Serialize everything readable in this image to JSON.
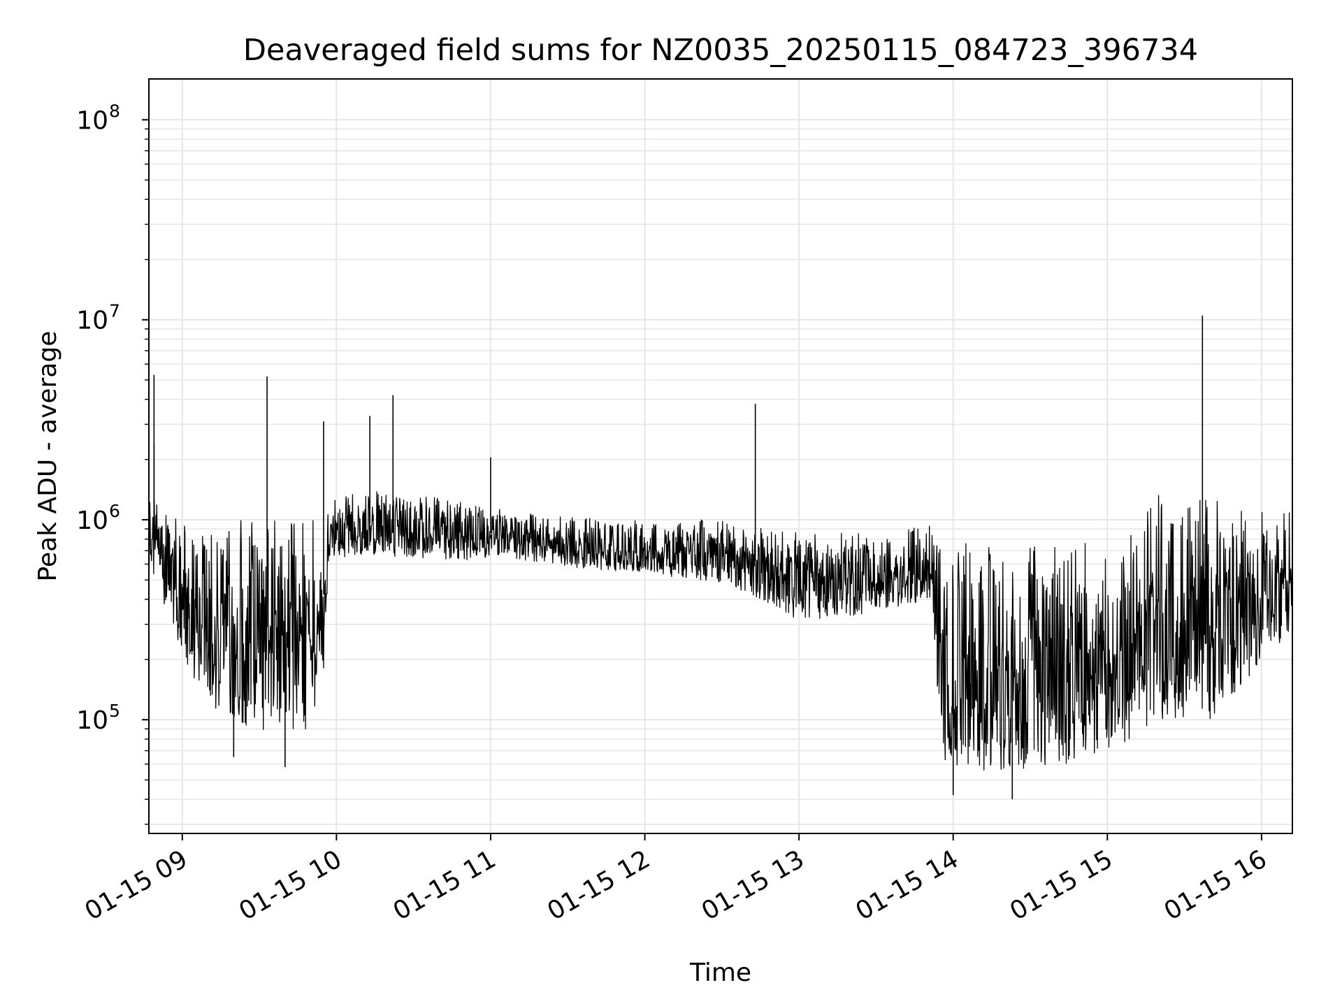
{
  "chart_data": {
    "type": "line",
    "title": "Deaveraged field sums for NZ0035_20250115_084723_396734",
    "xlabel": "Time",
    "ylabel": "Peak ADU - average",
    "yscale": "log",
    "ylim": [
      27000,
      160000000
    ],
    "xlim": [
      "2025-01-15 08:47",
      "2025-01-15 16:12"
    ],
    "grid": true,
    "line_color": "#000000",
    "grid_color": "#e6e6e6",
    "x_ticks": [
      {
        "t": "2025-01-15 09:00",
        "label": "01-15 09"
      },
      {
        "t": "2025-01-15 10:00",
        "label": "01-15 10"
      },
      {
        "t": "2025-01-15 11:00",
        "label": "01-15 11"
      },
      {
        "t": "2025-01-15 12:00",
        "label": "01-15 12"
      },
      {
        "t": "2025-01-15 13:00",
        "label": "01-15 13"
      },
      {
        "t": "2025-01-15 14:00",
        "label": "01-15 14"
      },
      {
        "t": "2025-01-15 15:00",
        "label": "01-15 15"
      },
      {
        "t": "2025-01-15 16:00",
        "label": "01-15 16"
      }
    ],
    "y_ticks": [
      {
        "value": 100000,
        "base": "10",
        "exp": "5"
      },
      {
        "value": 1000000,
        "base": "10",
        "exp": "6"
      },
      {
        "value": 10000000,
        "base": "10",
        "exp": "7"
      },
      {
        "value": 100000000,
        "base": "10",
        "exp": "8"
      }
    ],
    "series": [
      {
        "envelope": [
          {
            "t": "2025-01-15 08:47",
            "high": 1400000,
            "low": 600000
          },
          {
            "t": "2025-01-15 08:55",
            "high": 1100000,
            "low": 300000
          },
          {
            "t": "2025-01-15 09:05",
            "high": 900000,
            "low": 150000
          },
          {
            "t": "2025-01-15 09:20",
            "high": 1000000,
            "low": 90000
          },
          {
            "t": "2025-01-15 09:35",
            "high": 1050000,
            "low": 80000
          },
          {
            "t": "2025-01-15 09:50",
            "high": 1050000,
            "low": 90000
          },
          {
            "t": "2025-01-15 09:55",
            "high": 1050000,
            "low": 170000
          },
          {
            "t": "2025-01-15 09:57",
            "high": 1350000,
            "low": 650000
          },
          {
            "t": "2025-01-15 10:15",
            "high": 1400000,
            "low": 650000
          },
          {
            "t": "2025-01-15 10:30",
            "high": 1350000,
            "low": 650000
          },
          {
            "t": "2025-01-15 10:45",
            "high": 1250000,
            "low": 620000
          },
          {
            "t": "2025-01-15 11:00",
            "high": 1150000,
            "low": 640000
          },
          {
            "t": "2025-01-15 11:30",
            "high": 1050000,
            "low": 580000
          },
          {
            "t": "2025-01-15 12:00",
            "high": 1000000,
            "low": 540000
          },
          {
            "t": "2025-01-15 12:30",
            "high": 1000000,
            "low": 480000
          },
          {
            "t": "2025-01-15 12:45",
            "high": 950000,
            "low": 400000
          },
          {
            "t": "2025-01-15 13:00",
            "high": 900000,
            "low": 310000
          },
          {
            "t": "2025-01-15 13:20",
            "high": 850000,
            "low": 330000
          },
          {
            "t": "2025-01-15 13:40",
            "high": 900000,
            "low": 370000
          },
          {
            "t": "2025-01-15 13:52",
            "high": 950000,
            "low": 400000
          },
          {
            "t": "2025-01-15 13:55",
            "high": 800000,
            "low": 60000
          },
          {
            "t": "2025-01-15 14:15",
            "high": 750000,
            "low": 55000
          },
          {
            "t": "2025-01-15 14:45",
            "high": 800000,
            "low": 60000
          },
          {
            "t": "2025-01-15 15:10",
            "high": 900000,
            "low": 80000
          },
          {
            "t": "2025-01-15 15:20",
            "high": 1350000,
            "low": 100000
          },
          {
            "t": "2025-01-15 15:40",
            "high": 1300000,
            "low": 100000
          },
          {
            "t": "2025-01-15 16:12",
            "high": 1100000,
            "low": 280000
          }
        ],
        "spikes": [
          {
            "t": "2025-01-15 08:49",
            "value": 5300000
          },
          {
            "t": "2025-01-15 08:49",
            "value": 2400000
          },
          {
            "t": "2025-01-15 09:33",
            "value": 5200000
          },
          {
            "t": "2025-01-15 09:55",
            "value": 3100000
          },
          {
            "t": "2025-01-15 10:13",
            "value": 3300000
          },
          {
            "t": "2025-01-15 10:22",
            "value": 4200000
          },
          {
            "t": "2025-01-15 11:00",
            "value": 2050000
          },
          {
            "t": "2025-01-15 12:43",
            "value": 3800000
          },
          {
            "t": "2025-01-15 15:37",
            "value": 10500000
          },
          {
            "t": "2025-01-15 14:00",
            "value": 42000
          },
          {
            "t": "2025-01-15 14:23",
            "value": 40000
          },
          {
            "t": "2025-01-15 09:20",
            "value": 65000
          },
          {
            "t": "2025-01-15 09:40",
            "value": 58000
          }
        ]
      }
    ]
  }
}
